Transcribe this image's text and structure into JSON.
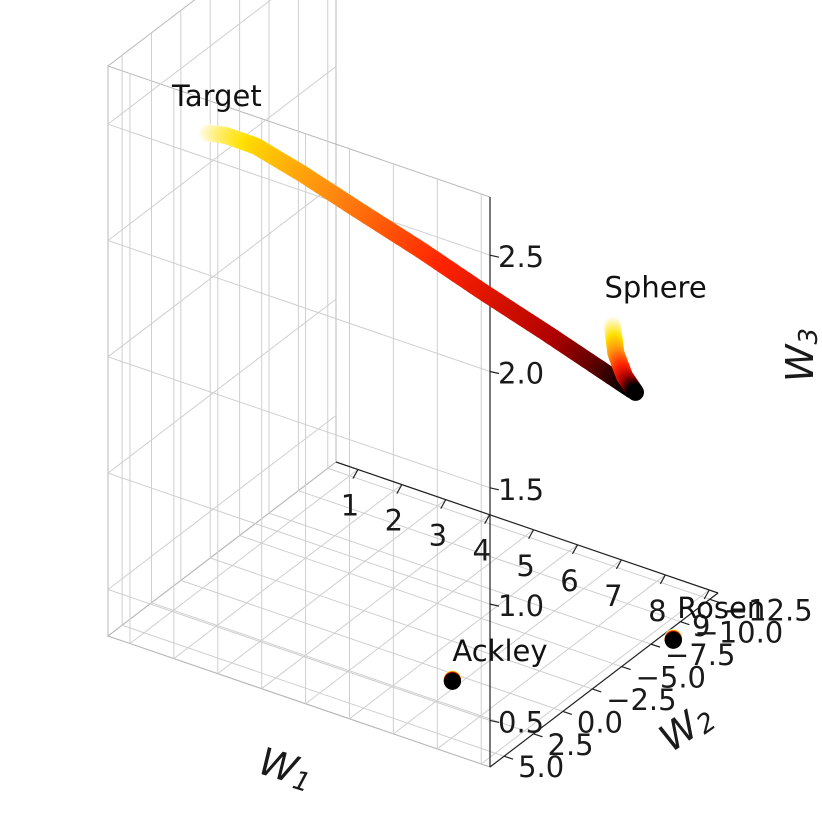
{
  "chart_data": {
    "type": "scatter",
    "projection": "3d",
    "grid": true,
    "axes": {
      "x": {
        "label": "W",
        "sub": "1",
        "range": [
          0.5,
          9.2
        ],
        "ticks": [
          1,
          2,
          3,
          4,
          5,
          6,
          7,
          8,
          9
        ],
        "tick_labels": [
          "1",
          "2",
          "3",
          "4",
          "5",
          "6",
          "7",
          "8",
          "9"
        ]
      },
      "y": {
        "label": "W",
        "sub": "2",
        "range": [
          -13.2,
          6.2
        ],
        "ticks": [
          -12.5,
          -10,
          -7.5,
          -5,
          -2.5,
          0,
          2.5,
          5
        ],
        "tick_labels": [
          "−12.5",
          "−10.0",
          "−7.5",
          "−5.0",
          "−2.5",
          "0.0",
          "2.5",
          "5.0"
        ]
      },
      "z": {
        "label": "W",
        "sub": "3",
        "range": [
          0.3,
          2.75
        ],
        "ticks": [
          0.5,
          1,
          1.5,
          2,
          2.5
        ],
        "tick_labels": [
          "0.5",
          "1.0",
          "1.5",
          "2.0",
          "2.5"
        ]
      }
    },
    "colormap": [
      "#000000",
      "#b00000",
      "#ff2400",
      "#ff8a10",
      "#ffe100",
      "#fffbe6"
    ],
    "trajectories": [
      {
        "name": "Target",
        "points": [
          [
            7.7,
            -11.5,
            1.14
          ],
          [
            7.2,
            -10.4,
            1.25
          ],
          [
            6.55,
            -8.6,
            1.42
          ],
          [
            5.7,
            -6.2,
            1.64
          ],
          [
            4.9,
            -4,
            1.85
          ],
          [
            4.1,
            -1.8,
            2.05
          ],
          [
            3.35,
            0.4,
            2.25
          ],
          [
            2.8,
            2.2,
            2.4
          ],
          [
            2.5,
            3.6,
            2.48
          ],
          [
            2.35,
            4.6,
            2.52
          ]
        ]
      },
      {
        "name": "Sphere",
        "points": [
          [
            7.75,
            -11.6,
            1.13
          ],
          [
            7.58,
            -11.3,
            1.2
          ],
          [
            7.45,
            -11.05,
            1.3
          ],
          [
            7.4,
            -10.95,
            1.42
          ]
        ]
      },
      {
        "name": "Ackley",
        "points": [
          [
            5.6,
            -4.05,
            0.04
          ],
          [
            5.6,
            -4.05,
            0.05
          ]
        ]
      },
      {
        "name": "Rosen",
        "points": [
          [
            8.25,
            -12.95,
            0.045
          ],
          [
            8.25,
            -12.95,
            0.055
          ]
        ]
      }
    ],
    "annotations": [
      {
        "text": "Target",
        "at": [
          2.35,
          4.6,
          2.52
        ]
      },
      {
        "text": "Sphere",
        "at": [
          7.4,
          -10.95,
          1.42
        ]
      },
      {
        "text": "Ackley",
        "at": [
          5.6,
          -4.05,
          0.05
        ]
      },
      {
        "text": "Rosen",
        "at": [
          8.25,
          -12.95,
          0.055
        ]
      }
    ]
  }
}
